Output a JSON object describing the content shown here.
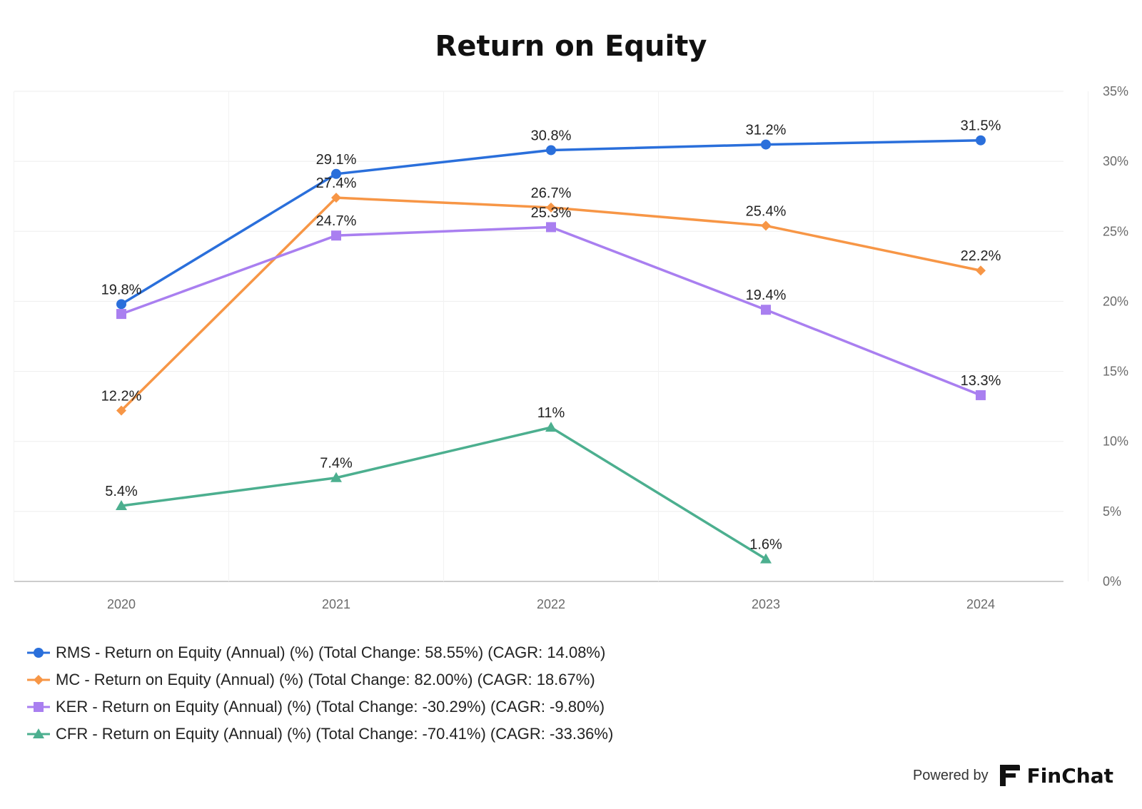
{
  "chart_data": {
    "type": "line",
    "title": "Return on Equity",
    "x": [
      "2020",
      "2021",
      "2022",
      "2023",
      "2024"
    ],
    "ylim": [
      0,
      35
    ],
    "y_ticks": [
      "0%",
      "5%",
      "10%",
      "15%",
      "20%",
      "25%",
      "30%",
      "35%"
    ],
    "y_tick_values": [
      0,
      5,
      10,
      15,
      20,
      25,
      30,
      35
    ],
    "y_axis_side": "right",
    "grid": true,
    "legend_placement": "bottom",
    "series": [
      {
        "name": "RMS - Return on Equity (Annual) (%) (Total Change: 58.55%) (CAGR: 14.08%)",
        "marker": "circle",
        "color": "#2a6fdb",
        "values": [
          19.8,
          29.1,
          30.8,
          31.2,
          31.5
        ],
        "labels": [
          "19.8%",
          "29.1%",
          "30.8%",
          "31.2%",
          "31.5%"
        ]
      },
      {
        "name": "MC - Return on Equity (Annual) (%) (Total Change: 82.00%) (CAGR: 18.67%)",
        "marker": "diamond",
        "color": "#f79646",
        "values": [
          12.2,
          27.4,
          26.7,
          25.4,
          22.2
        ],
        "labels": [
          "12.2%",
          "27.4%",
          "26.7%",
          "25.4%",
          "22.2%"
        ]
      },
      {
        "name": "KER - Return on Equity (Annual) (%) (Total Change: -30.29%) (CAGR: -9.80%)",
        "marker": "square",
        "color": "#a97ff0",
        "values": [
          19.1,
          24.7,
          25.3,
          19.4,
          13.3
        ],
        "labels": [
          null,
          "24.7%",
          "25.3%",
          "19.4%",
          "13.3%"
        ]
      },
      {
        "name": "CFR - Return on Equity (Annual) (%) (Total Change: -70.41%) (CAGR: -33.36%)",
        "marker": "triangle",
        "color": "#4caf8f",
        "values": [
          5.4,
          7.4,
          11,
          1.6,
          null
        ],
        "labels": [
          "5.4%",
          "7.4%",
          "11%",
          "1.6%",
          null
        ]
      }
    ]
  },
  "footer": {
    "powered_by": "Powered by",
    "brand": "FinChat"
  }
}
